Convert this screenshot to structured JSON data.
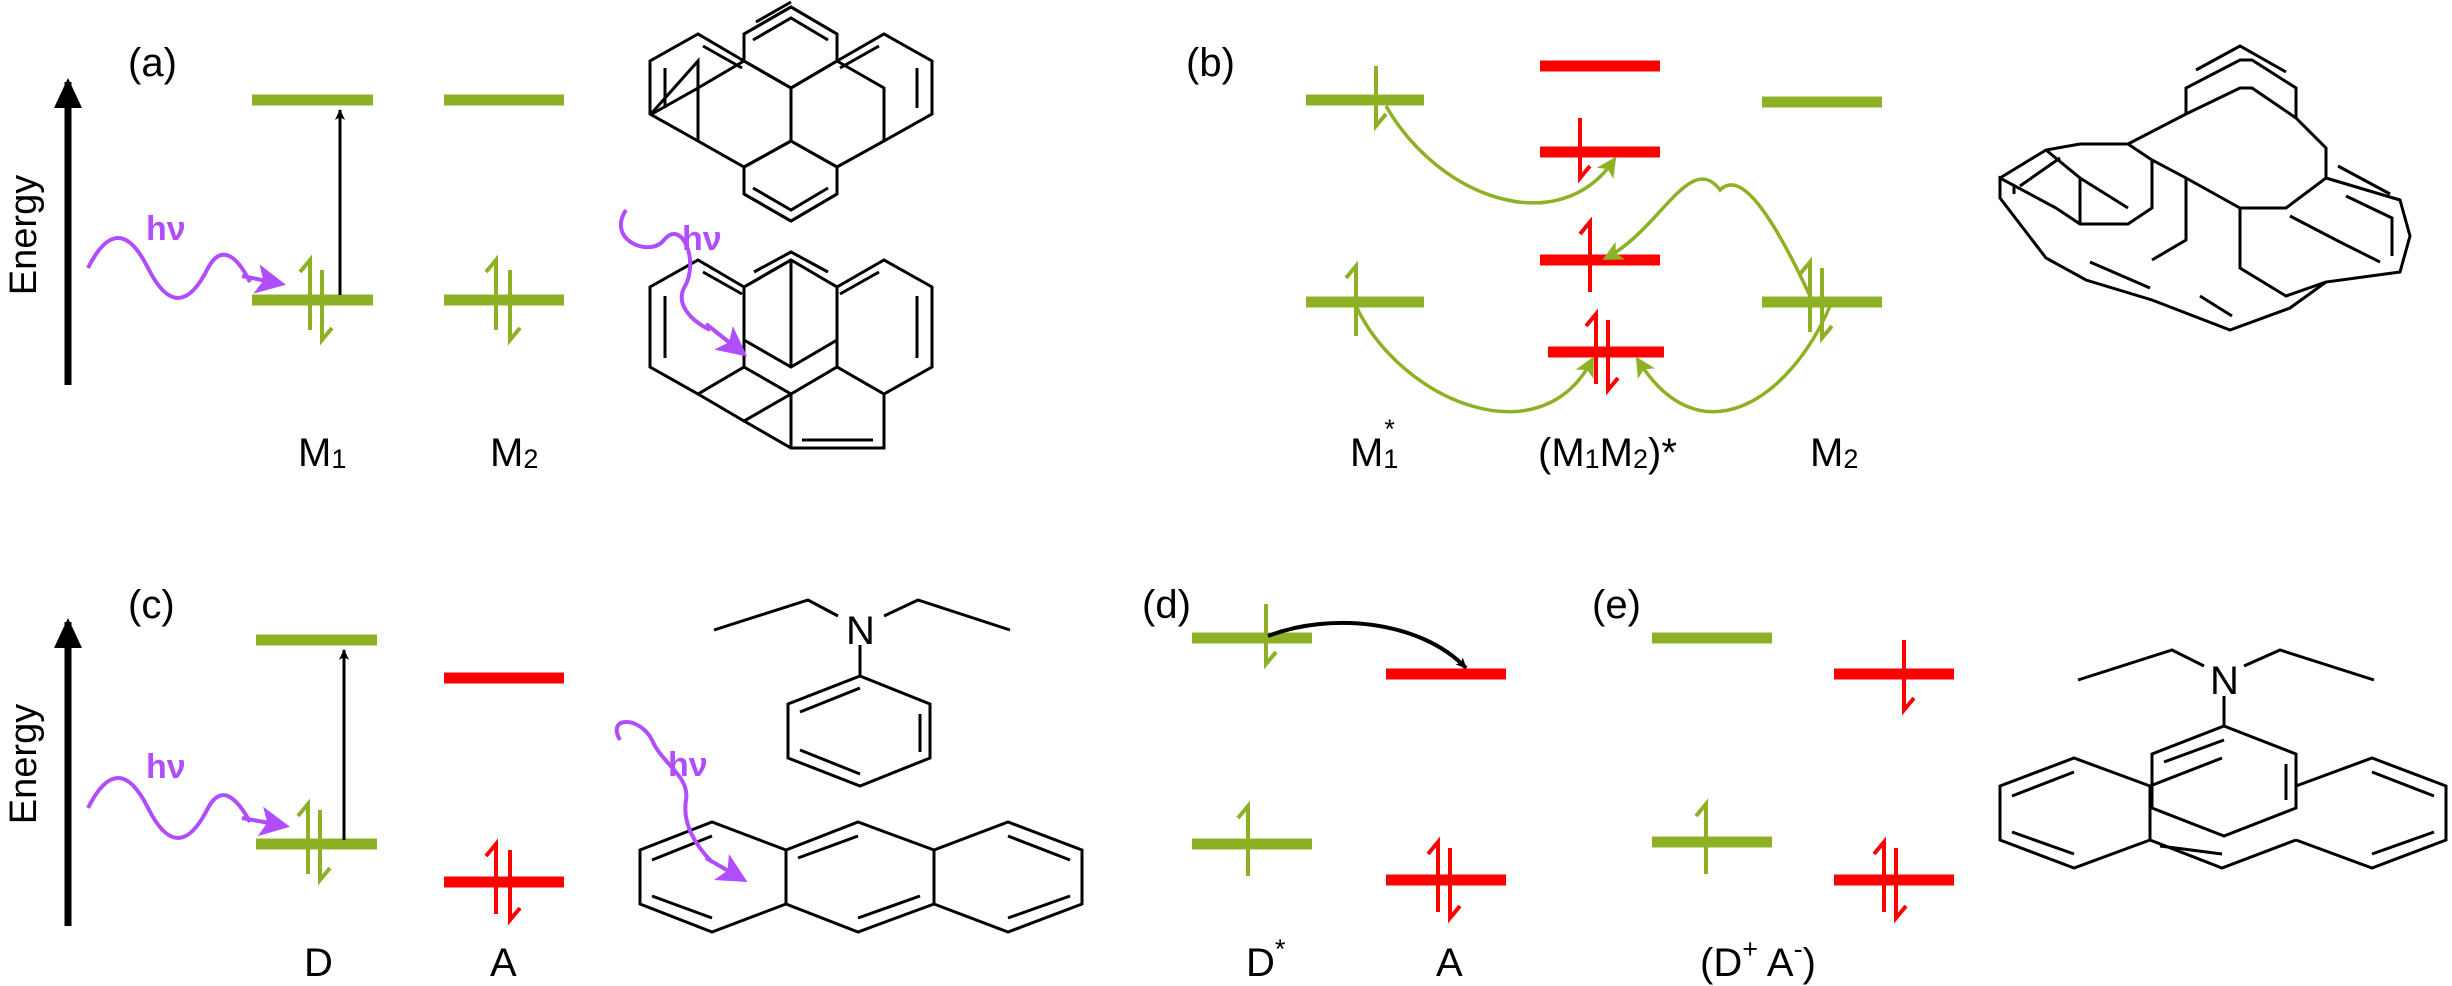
{
  "colors": {
    "green": "#8DB024",
    "red": "#FF0000",
    "purple": "#B04DFF",
    "black": "#000000"
  },
  "panels": {
    "a": {
      "tag": "(a)",
      "axis": "Energy",
      "photon": "hν",
      "label_m1": "M",
      "label_m1_sub": "1",
      "label_m2": "M",
      "label_m2_sub": "2"
    },
    "b": {
      "tag": "(b)",
      "label_m1": "M",
      "label_m1_sub": "1",
      "label_m1_sup": "*",
      "label_pair_open": "(M",
      "label_pair_sub1": "1",
      "label_pair_mid": "M",
      "label_pair_sub2": "2",
      "label_pair_close": ")*",
      "label_m2": "M",
      "label_m2_sub": "2"
    },
    "c": {
      "tag": "(c)",
      "axis": "Energy",
      "photon1": "hν",
      "photon2": "hν",
      "label_d": "D",
      "label_a": "A"
    },
    "d": {
      "tag": "(d)",
      "label_d": "D",
      "label_d_sup": "*",
      "label_a": "A"
    },
    "e": {
      "tag": "(e)",
      "label_open": "(D",
      "label_plus": "+",
      "label_a": " A",
      "label_minus": "-",
      "label_close": ")"
    }
  }
}
